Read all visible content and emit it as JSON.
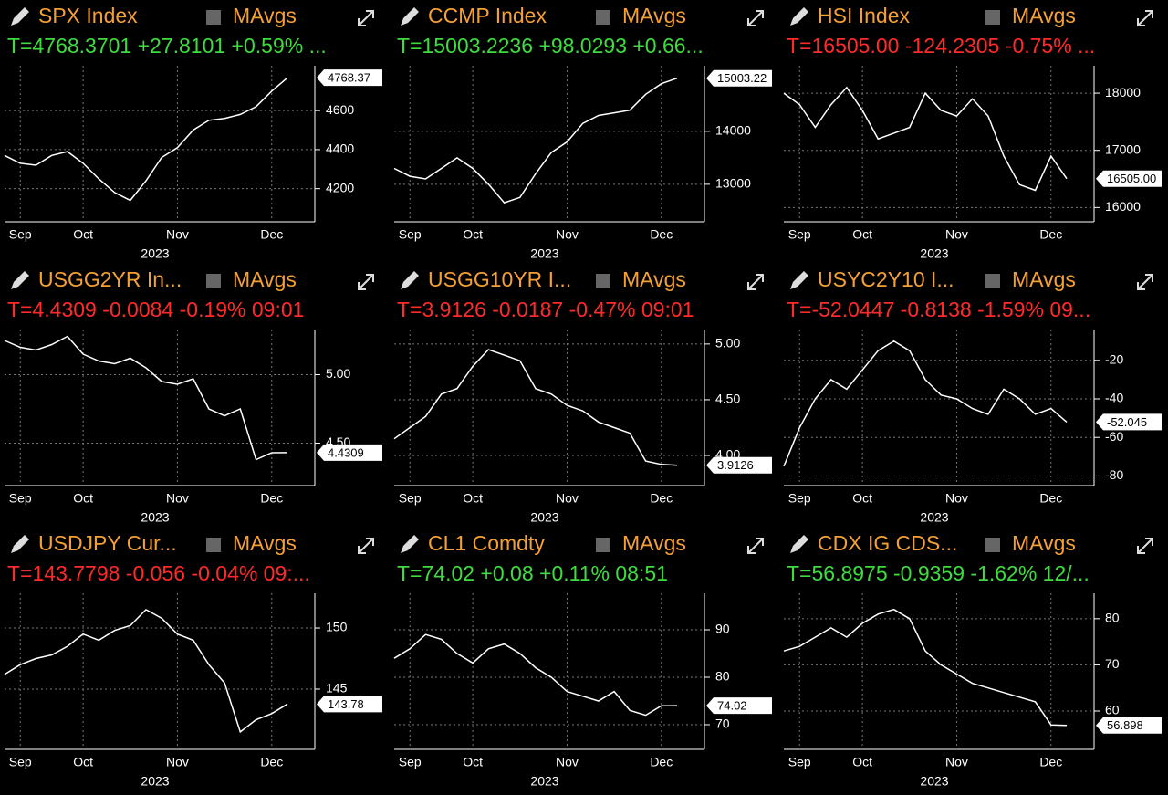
{
  "chart_data": [
    {
      "type": "line",
      "title": "SPX Index",
      "toggle": "MAvgs",
      "subtitle": "T=4768.3701 +27.8101 +0.59% ...",
      "subtitle_color": "#3fdc3f",
      "color": "#ffffff",
      "grid": true,
      "xlabel": "2023",
      "categories": [
        null,
        "Sep",
        null,
        null,
        null,
        "Oct",
        null,
        null,
        null,
        null,
        null,
        "Nov",
        null,
        null,
        null,
        null,
        null,
        "Dec",
        null
      ],
      "values": [
        4370,
        4330,
        4320,
        4370,
        4390,
        4330,
        4250,
        4180,
        4140,
        4240,
        4360,
        4410,
        4500,
        4550,
        4560,
        4580,
        4620,
        4700,
        4768.37
      ],
      "ylim": [
        4030,
        4830
      ],
      "yticks": [
        4200,
        4400,
        4600
      ],
      "last_value": 4768.37
    },
    {
      "type": "line",
      "title": "CCMP Index",
      "toggle": "MAvgs",
      "subtitle": "T=15003.2236 +98.0293 +0.66...",
      "subtitle_color": "#3fdc3f",
      "color": "#ffffff",
      "grid": true,
      "xlabel": "2023",
      "categories": [
        null,
        "Sep",
        null,
        null,
        null,
        "Oct",
        null,
        null,
        null,
        null,
        null,
        "Nov",
        null,
        null,
        null,
        null,
        null,
        "Dec",
        null
      ],
      "values": [
        13300,
        13150,
        13100,
        13300,
        13500,
        13300,
        13000,
        12650,
        12750,
        13200,
        13600,
        13800,
        14150,
        14300,
        14350,
        14400,
        14700,
        14900,
        15003.22
      ],
      "ylim": [
        12290,
        15240
      ],
      "yticks": [
        13000,
        14000
      ],
      "last_value": 15003.22
    },
    {
      "type": "line",
      "title": "HSI Index",
      "toggle": "MAvgs",
      "subtitle": "T=16505.00 -124.2305 -0.75% ...",
      "subtitle_color": "#ff2a2a",
      "color": "#ffffff",
      "grid": true,
      "xlabel": "2023",
      "categories": [
        null,
        "Sep",
        null,
        null,
        null,
        "Oct",
        null,
        null,
        null,
        null,
        null,
        "Nov",
        null,
        null,
        null,
        null,
        null,
        "Dec",
        null
      ],
      "values": [
        18000,
        17800,
        17400,
        17800,
        18100,
        17700,
        17200,
        17300,
        17400,
        18000,
        17700,
        17600,
        17900,
        17600,
        16900,
        16400,
        16300,
        16900,
        16505
      ],
      "ylim": [
        15750,
        18480
      ],
      "yticks": [
        16000,
        17000,
        18000
      ],
      "last_value": {
        "value": 16505,
        "label": "16505.00"
      }
    },
    {
      "type": "line",
      "title": "USGG2YR In...",
      "toggle": "MAvgs",
      "subtitle": "T=4.4309 -0.0084 -0.19% 09:01",
      "subtitle_color": "#ff2a2a",
      "color": "#ffffff",
      "grid": true,
      "xlabel": "2023",
      "categories": [
        null,
        "Sep",
        null,
        null,
        null,
        "Oct",
        null,
        null,
        null,
        null,
        null,
        "Nov",
        null,
        null,
        null,
        null,
        null,
        "Dec",
        null
      ],
      "values": [
        5.25,
        5.2,
        5.18,
        5.22,
        5.28,
        5.15,
        5.1,
        5.08,
        5.12,
        5.05,
        4.95,
        4.93,
        4.97,
        4.75,
        4.7,
        4.75,
        4.38,
        4.43,
        4.4309
      ],
      "ylim": [
        4.19,
        5.33
      ],
      "yticks": [
        {
          "value": 4.5,
          "label": "4.50"
        },
        {
          "value": 5,
          "label": "5.00"
        }
      ],
      "last_value": 4.4309
    },
    {
      "type": "line",
      "title": "USGG10YR I...",
      "toggle": "MAvgs",
      "subtitle": "T=3.9126 -0.0187 -0.47% 09:01",
      "subtitle_color": "#ff2a2a",
      "color": "#ffffff",
      "grid": true,
      "xlabel": "2023",
      "categories": [
        null,
        "Sep",
        null,
        null,
        null,
        "Oct",
        null,
        null,
        null,
        null,
        null,
        "Nov",
        null,
        null,
        null,
        null,
        null,
        "Dec",
        null
      ],
      "values": [
        4.15,
        4.25,
        4.35,
        4.55,
        4.6,
        4.8,
        4.95,
        4.9,
        4.85,
        4.6,
        4.55,
        4.45,
        4.4,
        4.3,
        4.25,
        4.2,
        3.95,
        3.92,
        3.9126
      ],
      "ylim": [
        3.73,
        5.13
      ],
      "yticks": [
        {
          "value": 4,
          "label": "4.00"
        },
        {
          "value": 4.5,
          "label": "4.50"
        },
        {
          "value": 5,
          "label": "5.00"
        }
      ],
      "last_value": 3.9126
    },
    {
      "type": "line",
      "title": "USYC2Y10 I...",
      "toggle": "MAvgs",
      "subtitle": "T=-52.0447 -0.8138 -1.59% 09...",
      "subtitle_color": "#ff2a2a",
      "color": "#ffffff",
      "grid": true,
      "xlabel": "2023",
      "categories": [
        null,
        "Sep",
        null,
        null,
        null,
        "Oct",
        null,
        null,
        null,
        null,
        null,
        "Nov",
        null,
        null,
        null,
        null,
        null,
        "Dec",
        null
      ],
      "values": [
        -75,
        -55,
        -40,
        -30,
        -35,
        -25,
        -15,
        -10,
        -15,
        -30,
        -38,
        -40,
        -45,
        -48,
        -35,
        -40,
        -48,
        -45,
        -52.0447
      ],
      "ylim": [
        -85,
        -4
      ],
      "yticks": [
        -80,
        -60,
        -40,
        -20
      ],
      "last_value": -52.045
    },
    {
      "type": "line",
      "title": "USDJPY Cur...",
      "toggle": "MAvgs",
      "subtitle": "T=143.7798 -0.056 -0.04% 09:...",
      "subtitle_color": "#ff2a2a",
      "color": "#ffffff",
      "grid": true,
      "xlabel": "2023",
      "categories": [
        null,
        "Sep",
        null,
        null,
        null,
        "Oct",
        null,
        null,
        null,
        null,
        null,
        "Nov",
        null,
        null,
        null,
        null,
        null,
        "Dec",
        null
      ],
      "values": [
        146.2,
        147,
        147.5,
        147.8,
        148.5,
        149.5,
        149,
        149.8,
        150.2,
        151.5,
        150.8,
        149.5,
        149,
        147,
        145.5,
        141.5,
        142.5,
        143,
        143.7798
      ],
      "ylim": [
        140.07,
        152.84
      ],
      "yticks": [
        145,
        150
      ],
      "last_value": 143.78
    },
    {
      "type": "line",
      "title": "CL1 Comdty",
      "toggle": "MAvgs",
      "subtitle": "T=74.02 +0.08 +0.11% 08:51",
      "subtitle_color": "#3fdc3f",
      "color": "#ffffff",
      "grid": true,
      "xlabel": "2023",
      "categories": [
        null,
        "Sep",
        null,
        null,
        null,
        "Oct",
        null,
        null,
        null,
        null,
        null,
        "Nov",
        null,
        null,
        null,
        null,
        null,
        "Dec",
        null
      ],
      "values": [
        84,
        86,
        89,
        88,
        85,
        83,
        86,
        87,
        85,
        82,
        80,
        77,
        76,
        75,
        77,
        73,
        72,
        74,
        74.02
      ],
      "ylim": [
        64.8,
        97.7
      ],
      "yticks": [
        70,
        80,
        90
      ],
      "last_value": 74.02
    },
    {
      "type": "line",
      "title": "CDX IG CDS...",
      "toggle": "MAvgs",
      "subtitle": "T=56.8975 -0.9359 -1.62% 12/...",
      "subtitle_color": "#3fdc3f",
      "color": "#ffffff",
      "grid": true,
      "xlabel": "2023",
      "categories": [
        null,
        "Sep",
        null,
        null,
        null,
        "Oct",
        null,
        null,
        null,
        null,
        null,
        "Nov",
        null,
        null,
        null,
        null,
        null,
        "Dec",
        null
      ],
      "values": [
        73,
        74,
        76,
        78,
        76,
        79,
        81,
        82,
        80,
        73,
        70,
        68,
        66,
        65,
        64,
        63,
        62,
        57,
        56.8975
      ],
      "ylim": [
        51.7,
        85.5
      ],
      "yticks": [
        60,
        70,
        80
      ],
      "last_value": 56.898
    }
  ]
}
